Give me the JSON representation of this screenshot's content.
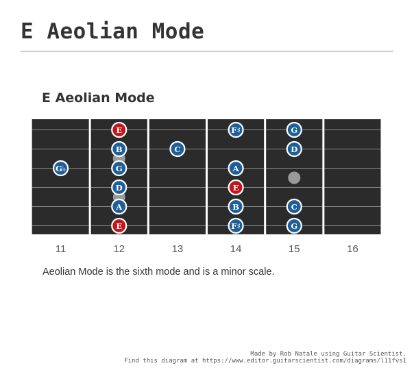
{
  "page_title": "E Aeolian Mode",
  "diagram": {
    "title": "E Aeolian Mode",
    "description": "Aeolian Mode is the sixth mode and is a minor scale.",
    "fret_numbers": [
      "11",
      "12",
      "13",
      "14",
      "15",
      "16"
    ],
    "first_fret": 11,
    "fret_count": 6,
    "string_count": 6,
    "inlay_dots": [
      {
        "fret": 12,
        "between_strings": [
          2,
          3
        ]
      },
      {
        "fret": 12,
        "between_strings": [
          4,
          5
        ]
      },
      {
        "fret": 15,
        "between_strings": [
          3,
          4
        ]
      }
    ],
    "notes": [
      {
        "label": "E",
        "string": 1,
        "fret": 12,
        "root": true
      },
      {
        "label": "F♯",
        "string": 1,
        "fret": 14,
        "root": false
      },
      {
        "label": "G",
        "string": 1,
        "fret": 15,
        "root": false
      },
      {
        "label": "B",
        "string": 2,
        "fret": 12,
        "root": false
      },
      {
        "label": "C",
        "string": 2,
        "fret": 13,
        "root": false
      },
      {
        "label": "D",
        "string": 2,
        "fret": 15,
        "root": false
      },
      {
        "label": "G♭",
        "string": 3,
        "fret": 11,
        "root": false
      },
      {
        "label": "G",
        "string": 3,
        "fret": 12,
        "root": false
      },
      {
        "label": "A",
        "string": 3,
        "fret": 14,
        "root": false
      },
      {
        "label": "D",
        "string": 4,
        "fret": 12,
        "root": false
      },
      {
        "label": "E",
        "string": 4,
        "fret": 14,
        "root": true
      },
      {
        "label": "A",
        "string": 5,
        "fret": 12,
        "root": false
      },
      {
        "label": "B",
        "string": 5,
        "fret": 14,
        "root": false
      },
      {
        "label": "C",
        "string": 5,
        "fret": 15,
        "root": false
      },
      {
        "label": "E",
        "string": 6,
        "fret": 12,
        "root": true
      },
      {
        "label": "F♯",
        "string": 6,
        "fret": 14,
        "root": false
      },
      {
        "label": "G",
        "string": 6,
        "fret": 15,
        "root": false
      }
    ],
    "colors": {
      "board": "#2b2b2b",
      "fret_wire": "#ffffff",
      "string": "#8a8a8a",
      "note_fill": "#1f5f99",
      "root_fill": "#c0161c",
      "note_ring": "#ffffff",
      "inlay": "#9a9a9a"
    }
  },
  "credit": {
    "line1": "Made by Rob Natale using Guitar Scientist.",
    "line2": "Find this diagram at https://www.editor.guitarscientist.com/diagrams/l11fvs1"
  }
}
